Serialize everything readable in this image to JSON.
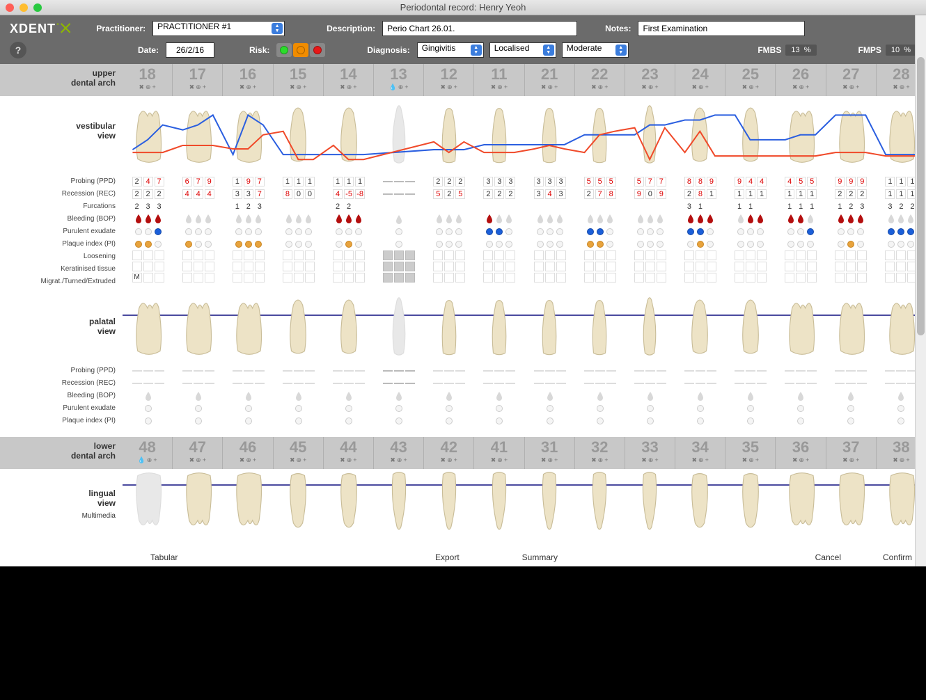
{
  "window": {
    "title": "Periodontal record: Henry Yeoh"
  },
  "toolbar": {
    "logo_text": "XDENT",
    "practitioner_label": "Practitioner:",
    "practitioner_value": "PRACTITIONER #1",
    "description_label": "Description:",
    "description_value": "Perio Chart 26.01.",
    "notes_label": "Notes:",
    "notes_value": "First Examination",
    "date_label": "Date:",
    "date_value": "26/2/16",
    "risk_label": "Risk:",
    "risk_colors": [
      "#2bdc2b",
      "#f08c00",
      "#e81717"
    ],
    "risk_selected": 1,
    "diagnosis_label": "Diagnosis:",
    "diagnosis_values": [
      "Gingivitis",
      "Localised",
      "Moderate"
    ],
    "fmbs_label": "FMBS",
    "fmbs_value": "13",
    "fmps_label": "FMPS",
    "fmps_value": "10",
    "percent": "%"
  },
  "labels": {
    "upper_arch": "upper\ndental arch",
    "lower_arch": "lower\ndental arch",
    "vestibular": "vestibular\nview",
    "palatal": "palatal\nview",
    "lingual": "lingual\nview",
    "multimedia": "Multimedia",
    "rows_upper": [
      "Probing (PPD)",
      "Recession (REC)",
      "Furcations",
      "Bleeding (BOP)",
      "Purulent exudate",
      "Plaque index (PI)",
      "Loosening",
      "Keratinised tissue",
      "Migrat./Turned/Extruded"
    ],
    "rows_palatal": [
      "Probing (PPD)",
      "Recession (REC)",
      "Bleeding (BOP)",
      "Purulent exudate",
      "Plaque index (PI)"
    ]
  },
  "footer": {
    "tabular": "Tabular",
    "export": "Export",
    "summary": "Summary",
    "cancel": "Cancel",
    "confirm": "Confirm"
  },
  "upper_teeth": [
    "18",
    "17",
    "16",
    "15",
    "14",
    "13",
    "12",
    "11",
    "21",
    "22",
    "23",
    "24",
    "25",
    "26",
    "27",
    "28"
  ],
  "lower_teeth": [
    "48",
    "47",
    "46",
    "45",
    "44",
    "43",
    "42",
    "41",
    "31",
    "32",
    "33",
    "34",
    "35",
    "36",
    "37",
    "38"
  ],
  "colors": {
    "ppd_line": "#2b5fe0",
    "rec_line": "#f04a2a",
    "threshold_red": 4,
    "tooth_fill": "#ede3c6",
    "tooth_shadow": "#c9bd98",
    "ghost_tooth_fill": "#e8e8e8",
    "palatal_line": "#4a4a9f",
    "bop_red": "#b40f0f",
    "bop_grey": "#d8d8d8",
    "plaque_amber": "#e8a33d",
    "exudate_blue": "#1b5fd9"
  },
  "upper_data": {
    "ppd": [
      [
        2,
        4,
        7
      ],
      [
        6,
        7,
        9
      ],
      [
        1,
        9,
        7
      ],
      [
        1,
        1,
        1
      ],
      [
        1,
        1,
        1
      ],
      null,
      [
        2,
        2,
        2
      ],
      [
        3,
        3,
        3
      ],
      [
        3,
        3,
        3
      ],
      [
        5,
        5,
        5
      ],
      [
        5,
        7,
        7
      ],
      [
        8,
        8,
        9
      ],
      [
        9,
        4,
        4
      ],
      [
        4,
        5,
        5
      ],
      [
        9,
        9,
        9
      ],
      [
        1,
        1,
        1
      ]
    ],
    "rec": [
      [
        2,
        2,
        2
      ],
      [
        4,
        4,
        4
      ],
      [
        3,
        3,
        7
      ],
      [
        8,
        0,
        0
      ],
      [
        4,
        -5,
        -8
      ],
      null,
      [
        5,
        2,
        5
      ],
      [
        2,
        2,
        2
      ],
      [
        3,
        4,
        3
      ],
      [
        2,
        7,
        8
      ],
      [
        9,
        0,
        9
      ],
      [
        2,
        8,
        1
      ],
      [
        1,
        1,
        1
      ],
      [
        1,
        1,
        1
      ],
      [
        2,
        2,
        2
      ],
      [
        1,
        1,
        1
      ]
    ],
    "furc": [
      [
        2,
        3,
        3
      ],
      null,
      [
        1,
        2,
        3
      ],
      null,
      [
        2,
        2,
        null
      ],
      null,
      null,
      null,
      null,
      null,
      null,
      [
        3,
        1,
        null
      ],
      [
        1,
        1,
        null
      ],
      [
        1,
        1,
        1
      ],
      [
        1,
        2,
        3
      ],
      [
        3,
        2,
        2
      ]
    ],
    "bop": [
      [
        1,
        1,
        1
      ],
      [
        0,
        0,
        0
      ],
      [
        0,
        0,
        0
      ],
      [
        0,
        0,
        0
      ],
      [
        1,
        1,
        1
      ],
      null,
      [
        0,
        0,
        0
      ],
      [
        1,
        0,
        0
      ],
      [
        0,
        0,
        0
      ],
      [
        0,
        0,
        0
      ],
      [
        0,
        0,
        0
      ],
      [
        1,
        1,
        1
      ],
      [
        0,
        1,
        1
      ],
      [
        1,
        1,
        0
      ],
      [
        1,
        1,
        1
      ],
      [
        0,
        0,
        0
      ]
    ],
    "exu": [
      [
        0,
        0,
        1
      ],
      [
        0,
        0,
        0
      ],
      [
        0,
        0,
        0
      ],
      [
        0,
        0,
        0
      ],
      [
        0,
        0,
        0
      ],
      null,
      [
        0,
        0,
        0
      ],
      [
        1,
        1,
        0
      ],
      [
        0,
        0,
        0
      ],
      [
        1,
        1,
        0
      ],
      [
        0,
        0,
        0
      ],
      [
        1,
        1,
        0
      ],
      [
        0,
        0,
        0
      ],
      [
        0,
        0,
        1
      ],
      [
        0,
        0,
        0
      ],
      [
        1,
        1,
        1
      ]
    ],
    "pi": [
      [
        1,
        1,
        0
      ],
      [
        1,
        0,
        0
      ],
      [
        1,
        1,
        1
      ],
      [
        0,
        0,
        0
      ],
      [
        0,
        1,
        0
      ],
      null,
      [
        0,
        0,
        0
      ],
      [
        0,
        0,
        0
      ],
      [
        0,
        0,
        0
      ],
      [
        1,
        1,
        0
      ],
      [
        0,
        0,
        0
      ],
      [
        0,
        1,
        0
      ],
      [
        0,
        0,
        0
      ],
      [
        0,
        0,
        0
      ],
      [
        0,
        1,
        0
      ],
      [
        0,
        0,
        0
      ]
    ],
    "mte": [
      "M",
      null,
      null,
      null,
      null,
      null,
      null,
      null,
      null,
      null,
      null,
      null,
      null,
      null,
      null,
      null
    ]
  },
  "missing_upper_idx": 5,
  "vestibular_chart": {
    "ylim": [
      0,
      12
    ],
    "line_width": 2
  }
}
